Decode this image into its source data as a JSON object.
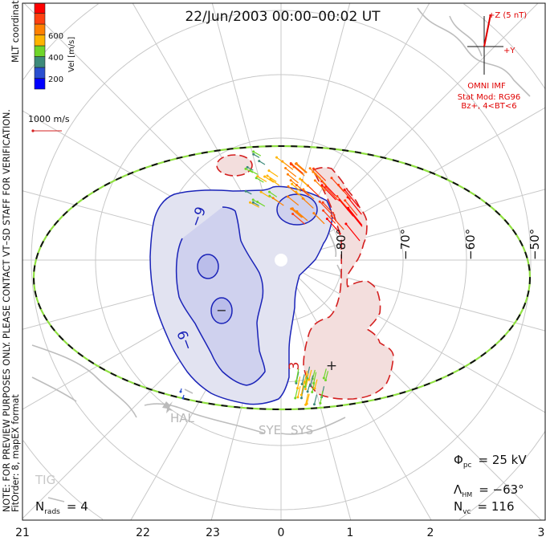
{
  "title": "22/Jun/2003 00:00–00:02 UT",
  "side_note_line1": "NOTE: FOR PREVIEW PURPOSES ONLY. PLEASE CONTACT VT–SD STAFF FOR VERIFICATION.",
  "side_note_line2": "FitOrder: 8, mapEX format",
  "coords_label": "MLT coordinates",
  "colorbar": {
    "label": "Vel [m/s]",
    "ticks": [
      "600",
      "400",
      "200"
    ],
    "colors": [
      "#0000ff",
      "#2a4fd0",
      "#3d8a7a",
      "#6fd62a",
      "#ffb400",
      "#ff8000",
      "#ff4010",
      "#ff0000"
    ]
  },
  "scale_vector": {
    "label": "1000 m/s",
    "color": "#d42020"
  },
  "imf": {
    "z_label": "+Z (5 nT)",
    "y_label": "+Y",
    "source": "OMNI IMF",
    "stat_mod": "Stat Mod: RG96",
    "condition": "Bz+, 4<BT<6",
    "color": "#e00000"
  },
  "latitude_labels": [
    "−80°",
    "−70°",
    "−60°",
    "−50°"
  ],
  "mlt_labels": [
    "21",
    "22",
    "23",
    "0",
    "1",
    "2",
    "3"
  ],
  "contour_labels": {
    "neg_a": "−9",
    "neg_b": "−9",
    "neg_min": "−",
    "pos": "3",
    "pos_max": "+"
  },
  "stations": [
    "HAL",
    "SYE",
    "SYS",
    "TIG"
  ],
  "stats": {
    "phi_sym": "Φ",
    "phi_sub": "pc",
    "phi_val": "= 25 kV",
    "lambda_sym": "Λ",
    "lambda_sub": "HM",
    "lambda_val": "= −63°",
    "nvc_sym": "N",
    "nvc_sub": "vc",
    "nvc_val": "= 116",
    "nrads_sym": "N",
    "nrads_sub": "rads",
    "nrads_val": "= 4"
  },
  "colors": {
    "negative_fill": "#e2e3f1",
    "negative_inner": "#cfd1ee",
    "negative_line": "#1a23b8",
    "positive_fill": "#f3dedd",
    "positive_line": "#d42020",
    "boundary_green": "#8fe040"
  }
}
